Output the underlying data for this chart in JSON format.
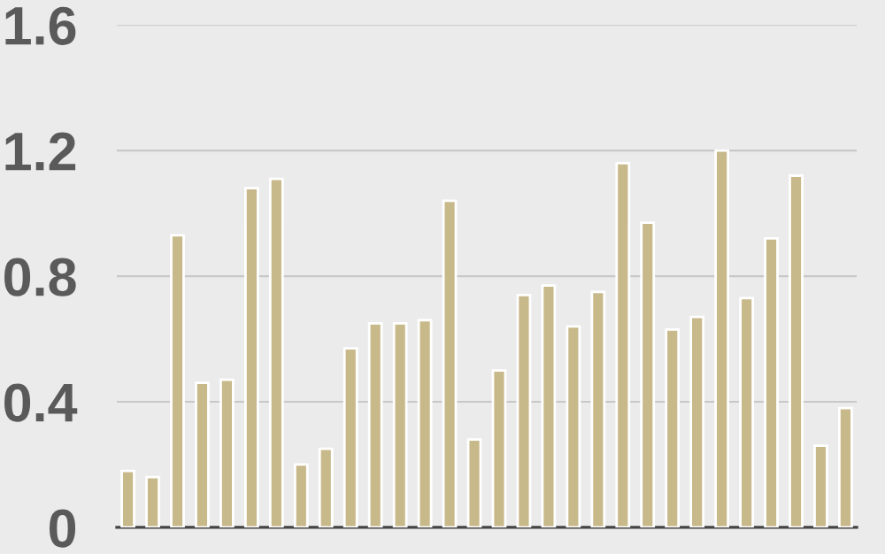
{
  "chart_data": {
    "type": "bar",
    "categories": [
      null,
      null,
      null,
      null,
      null,
      null,
      null,
      null,
      null,
      null,
      null,
      null,
      null,
      null,
      null,
      null,
      null,
      null,
      null,
      null,
      null,
      null,
      null,
      null,
      null,
      null,
      null,
      null,
      null,
      null
    ],
    "values": [
      0.18,
      0.16,
      0.93,
      0.46,
      0.47,
      1.08,
      1.11,
      0.2,
      0.25,
      0.57,
      0.65,
      0.65,
      0.66,
      1.04,
      0.28,
      0.5,
      0.74,
      0.77,
      0.64,
      0.75,
      1.16,
      0.97,
      0.63,
      0.67,
      1.2,
      0.73,
      0.92,
      1.12,
      0.26,
      0.38
    ],
    "color": "#c8b98a",
    "ylim": [
      0,
      1.6
    ],
    "yticks": [
      0,
      0.4,
      0.8,
      1.2,
      1.6
    ],
    "grid": "y",
    "legend": false
  }
}
